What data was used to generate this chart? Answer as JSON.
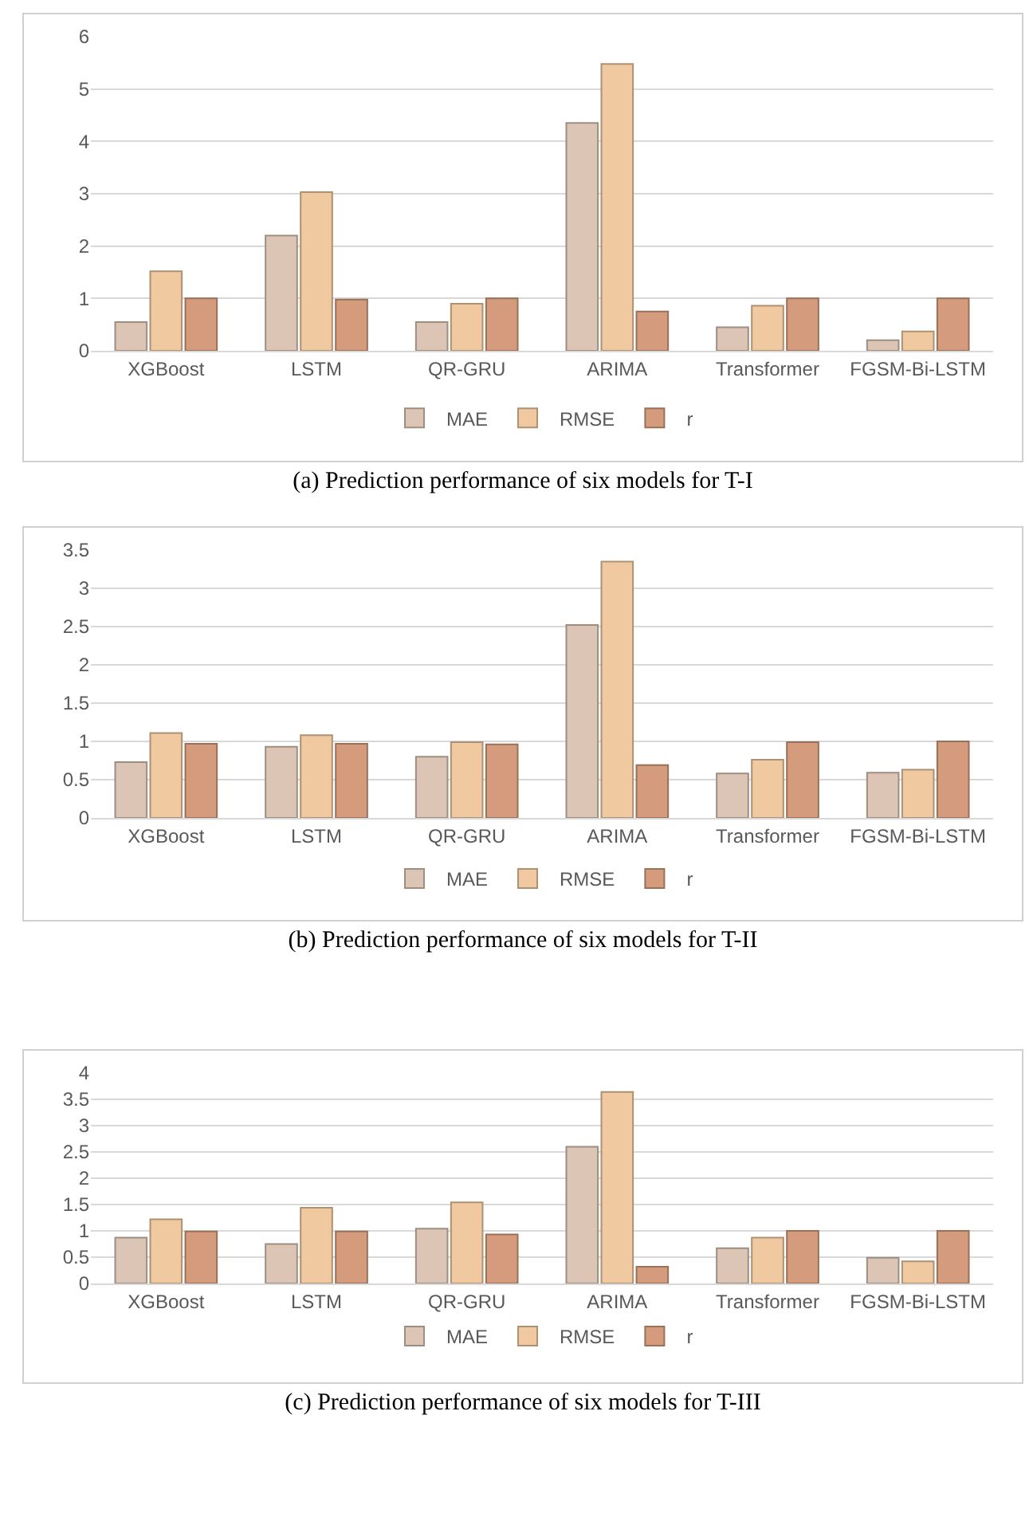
{
  "chart_data": [
    {
      "type": "bar",
      "categories": [
        "XGBoost",
        "LSTM",
        "QR-GRU",
        "ARIMA",
        "Transformer",
        "FGSM-Bi-LSTM"
      ],
      "series": [
        {
          "name": "MAE",
          "color": "#dcc5b4",
          "values": [
            0.55,
            2.2,
            0.55,
            4.35,
            0.45,
            0.2
          ]
        },
        {
          "name": "RMSE",
          "color": "#f0c9a0",
          "values": [
            1.52,
            3.03,
            0.9,
            5.48,
            0.86,
            0.37
          ]
        },
        {
          "name": "r",
          "color": "#d49c7c",
          "values": [
            1.0,
            0.98,
            1.0,
            0.75,
            1.0,
            1.0
          ]
        }
      ],
      "ylim": [
        0,
        6
      ],
      "yticks": [
        0,
        1,
        2,
        3,
        4,
        5,
        6
      ],
      "grid": "y",
      "legend": "bottom",
      "annotations": [
        "(a)    Prediction performance of six models for T-I"
      ]
    },
    {
      "type": "bar",
      "categories": [
        "XGBoost",
        "LSTM",
        "QR-GRU",
        "ARIMA",
        "Transformer",
        "FGSM-Bi-LSTM"
      ],
      "series": [
        {
          "name": "MAE",
          "color": "#dcc5b4",
          "values": [
            0.73,
            0.93,
            0.8,
            2.52,
            0.58,
            0.59
          ]
        },
        {
          "name": "RMSE",
          "color": "#f0c9a0",
          "values": [
            1.11,
            1.08,
            0.99,
            3.35,
            0.76,
            0.63
          ]
        },
        {
          "name": "r",
          "color": "#d49c7c",
          "values": [
            0.97,
            0.97,
            0.96,
            0.69,
            0.99,
            1.0
          ]
        }
      ],
      "ylim": [
        0,
        3.5
      ],
      "yticks": [
        0,
        0.5,
        1,
        1.5,
        2,
        2.5,
        3,
        3.5
      ],
      "grid": "y",
      "legend": "bottom",
      "annotations": [
        "(b)    Prediction performance of six models for T-II"
      ]
    },
    {
      "type": "bar",
      "categories": [
        "XGBoost",
        "LSTM",
        "QR-GRU",
        "ARIMA",
        "Transformer",
        "FGSM-Bi-LSTM"
      ],
      "series": [
        {
          "name": "MAE",
          "color": "#dcc5b4",
          "values": [
            0.87,
            0.75,
            1.04,
            2.6,
            0.67,
            0.49
          ]
        },
        {
          "name": "RMSE",
          "color": "#f0c9a0",
          "values": [
            1.22,
            1.44,
            1.54,
            3.64,
            0.87,
            0.42
          ]
        },
        {
          "name": "r",
          "color": "#d49c7c",
          "values": [
            0.99,
            0.99,
            0.93,
            0.32,
            1.0,
            1.0
          ]
        }
      ],
      "ylim": [
        0,
        4
      ],
      "yticks": [
        0,
        0.5,
        1,
        1.5,
        2,
        2.5,
        3,
        3.5,
        4
      ],
      "grid": "y",
      "legend": "bottom",
      "annotations": [
        "(c)    Prediction performance of six models for T-III"
      ]
    }
  ]
}
